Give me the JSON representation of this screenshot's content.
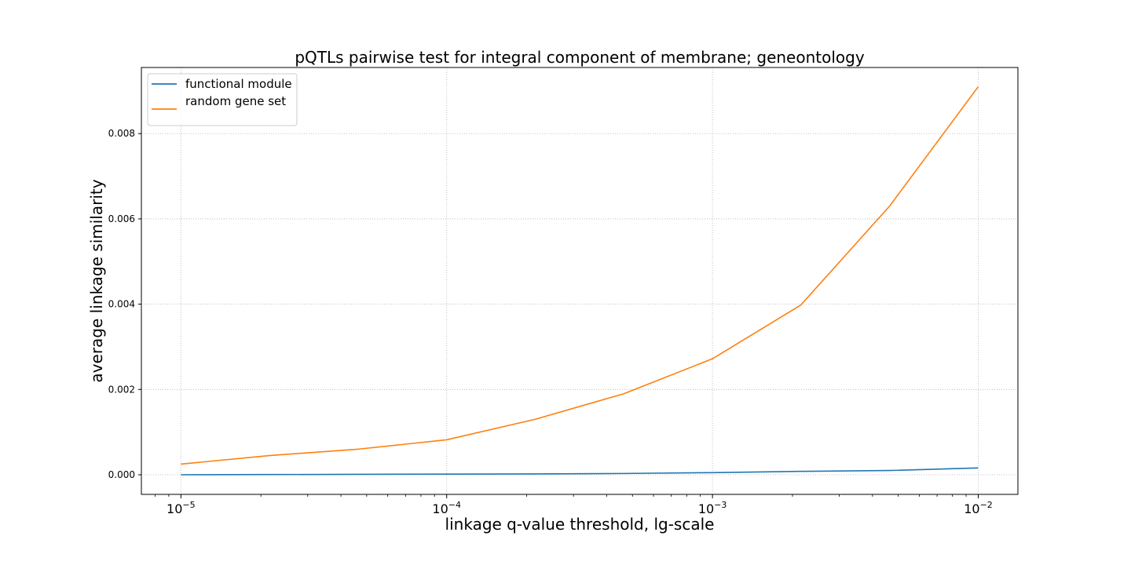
{
  "chart_data": {
    "type": "line",
    "title": "pQTLs pairwise test for integral component of membrane; geneontology",
    "xlabel": "linkage q-value threshold, lg-scale",
    "ylabel": "average linkage similarity",
    "x_scale": "log",
    "xlim": [
      7.1e-06,
      0.0141
    ],
    "ylim": [
      -0.00046,
      0.00955
    ],
    "x_ticks": [
      1e-05,
      0.0001,
      0.001,
      0.01
    ],
    "x_tick_labels": [
      {
        "base": "10",
        "exp": "−5"
      },
      {
        "base": "10",
        "exp": "−4"
      },
      {
        "base": "10",
        "exp": "−3"
      },
      {
        "base": "10",
        "exp": "−2"
      }
    ],
    "y_ticks": [
      0.0,
      0.002,
      0.004,
      0.006,
      0.008
    ],
    "y_tick_labels": [
      "0.000",
      "0.002",
      "0.004",
      "0.006",
      "0.008"
    ],
    "grid": true,
    "legend_position": "top-left",
    "x": [
      1e-05,
      2.15e-05,
      4.64e-05,
      0.0001,
      0.000215,
      0.000464,
      0.001,
      0.00215,
      0.00464,
      0.01
    ],
    "series": [
      {
        "name": "functional module",
        "color": "#1f77b4",
        "values": [
          0.0,
          5e-06,
          1e-05,
          1.5e-05,
          2e-05,
          3e-05,
          5e-05,
          8e-05,
          0.0001,
          0.00016
        ]
      },
      {
        "name": "random gene set",
        "color": "#ff7f0e",
        "values": [
          0.00025,
          0.00045,
          0.0006,
          0.00082,
          0.0013,
          0.0019,
          0.00272,
          0.00398,
          0.0063,
          0.0091
        ]
      }
    ]
  }
}
